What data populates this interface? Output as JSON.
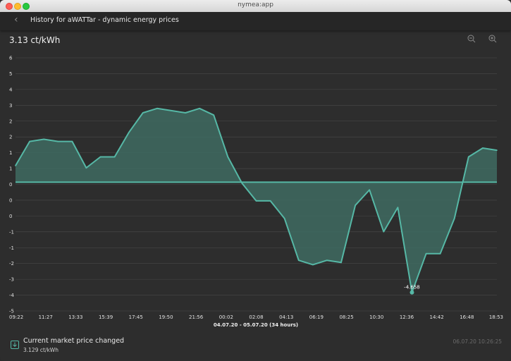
{
  "window": {
    "title": "nymea:app"
  },
  "header": {
    "back_icon": "back-chevron-icon",
    "title": "History for aWATTar - dynamic energy prices"
  },
  "current_value": "3.13 ct/kWh",
  "toolbar": {
    "zoom_out_icon": "zoom-out-icon",
    "zoom_in_icon": "zoom-in-icon"
  },
  "colors": {
    "accent": "#56b8a6",
    "fill": "#3f6b61",
    "background": "#2d2d2d",
    "grid": "#4a4a4a"
  },
  "chart_data": {
    "type": "area",
    "title": "",
    "xlabel": "04.07.20 - 05.07.20 (34 hours)",
    "ylabel": "",
    "y_tick_labels": [
      "6",
      "5",
      "4",
      "3",
      "2",
      "2",
      "1",
      "1",
      "0",
      "0",
      "0",
      "-1",
      "-1",
      "-2",
      "-3",
      "-4",
      "-5"
    ],
    "x_tick_labels": [
      "09:22",
      "11:27",
      "13:33",
      "15:39",
      "17:45",
      "19:50",
      "21:56",
      "00:02",
      "02:08",
      "04:13",
      "06:19",
      "08:25",
      "10:30",
      "12:36",
      "14:42",
      "16:48",
      "18:53"
    ],
    "reference_value": 0.35,
    "ylim": [
      -5.5,
      6.0
    ],
    "x": [
      0,
      1,
      2,
      3,
      4,
      5,
      6,
      7,
      8,
      9,
      10,
      11,
      12,
      13,
      14,
      15,
      16,
      17,
      18,
      19,
      20,
      21,
      22,
      23,
      24,
      25,
      26,
      27,
      28,
      29,
      30,
      31,
      32,
      33,
      34
    ],
    "values": [
      1.1,
      2.2,
      2.3,
      2.2,
      2.2,
      1.0,
      1.5,
      1.5,
      2.6,
      3.5,
      3.7,
      3.6,
      3.5,
      3.7,
      3.4,
      1.5,
      0.3,
      -0.5,
      -0.5,
      -1.3,
      -3.2,
      -3.4,
      -3.2,
      -3.3,
      -0.7,
      0.0,
      -1.9,
      -0.8,
      -4.658,
      -2.9,
      -2.9,
      -1.3,
      1.5,
      1.9,
      1.8
    ],
    "min_point": {
      "index": 28,
      "label": "-4.658"
    },
    "grid": true,
    "legend": "none"
  },
  "notification": {
    "icon": "download-icon",
    "title": "Current market price changed",
    "value": "3.129 ct/kWh",
    "timestamp": "06.07.20 10:26:25"
  }
}
